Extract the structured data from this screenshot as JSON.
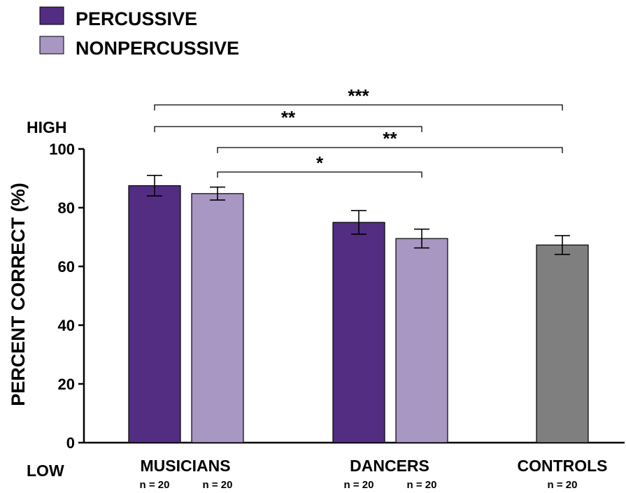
{
  "chart_data": {
    "type": "bar",
    "title": "",
    "ylabel": "PERCENT CORRECT (%)",
    "xlabel": "",
    "ylim": [
      0,
      100
    ],
    "yticks": [
      0,
      20,
      40,
      60,
      80,
      100
    ],
    "y_high_label": "HIGH",
    "y_low_label": "LOW",
    "grid": false,
    "legend_position": "top-left",
    "legend": [
      {
        "label": "PERCUSSIVE",
        "color": "#522d82"
      },
      {
        "label": "NONPERCUSSIVE",
        "color": "#a897c2"
      }
    ],
    "groups": [
      {
        "label": "MUSICIANS",
        "bars": [
          {
            "series": "PERCUSSIVE",
            "value": 87.5,
            "error": 3.5,
            "n_label": "n = 20",
            "color": "#522d82"
          },
          {
            "series": "NONPERCUSSIVE",
            "value": 84.8,
            "error": 2.2,
            "n_label": "n = 20",
            "color": "#a897c2"
          }
        ]
      },
      {
        "label": "DANCERS",
        "bars": [
          {
            "series": "PERCUSSIVE",
            "value": 75.0,
            "error": 4.0,
            "n_label": "n = 20",
            "color": "#522d82"
          },
          {
            "series": "NONPERCUSSIVE",
            "value": 69.5,
            "error": 3.2,
            "n_label": "n = 20",
            "color": "#a897c2"
          }
        ]
      },
      {
        "label": "CONTROLS",
        "bars": [
          {
            "series": "CONTROLS",
            "value": 67.3,
            "error": 3.2,
            "n_label": "n = 20",
            "color": "#7f7f7f"
          }
        ]
      }
    ],
    "significance": [
      {
        "label": "***",
        "from": "MUSICIANS / PERCUSSIVE",
        "to": "CONTROLS"
      },
      {
        "label": "**",
        "from": "MUSICIANS / PERCUSSIVE",
        "to": "DANCERS / NONPERCUSSIVE"
      },
      {
        "label": "**",
        "from": "MUSICIANS / NONPERCUSSIVE",
        "to": "CONTROLS"
      },
      {
        "label": "*",
        "from": "MUSICIANS / NONPERCUSSIVE",
        "to": "DANCERS / NONPERCUSSIVE"
      }
    ]
  }
}
